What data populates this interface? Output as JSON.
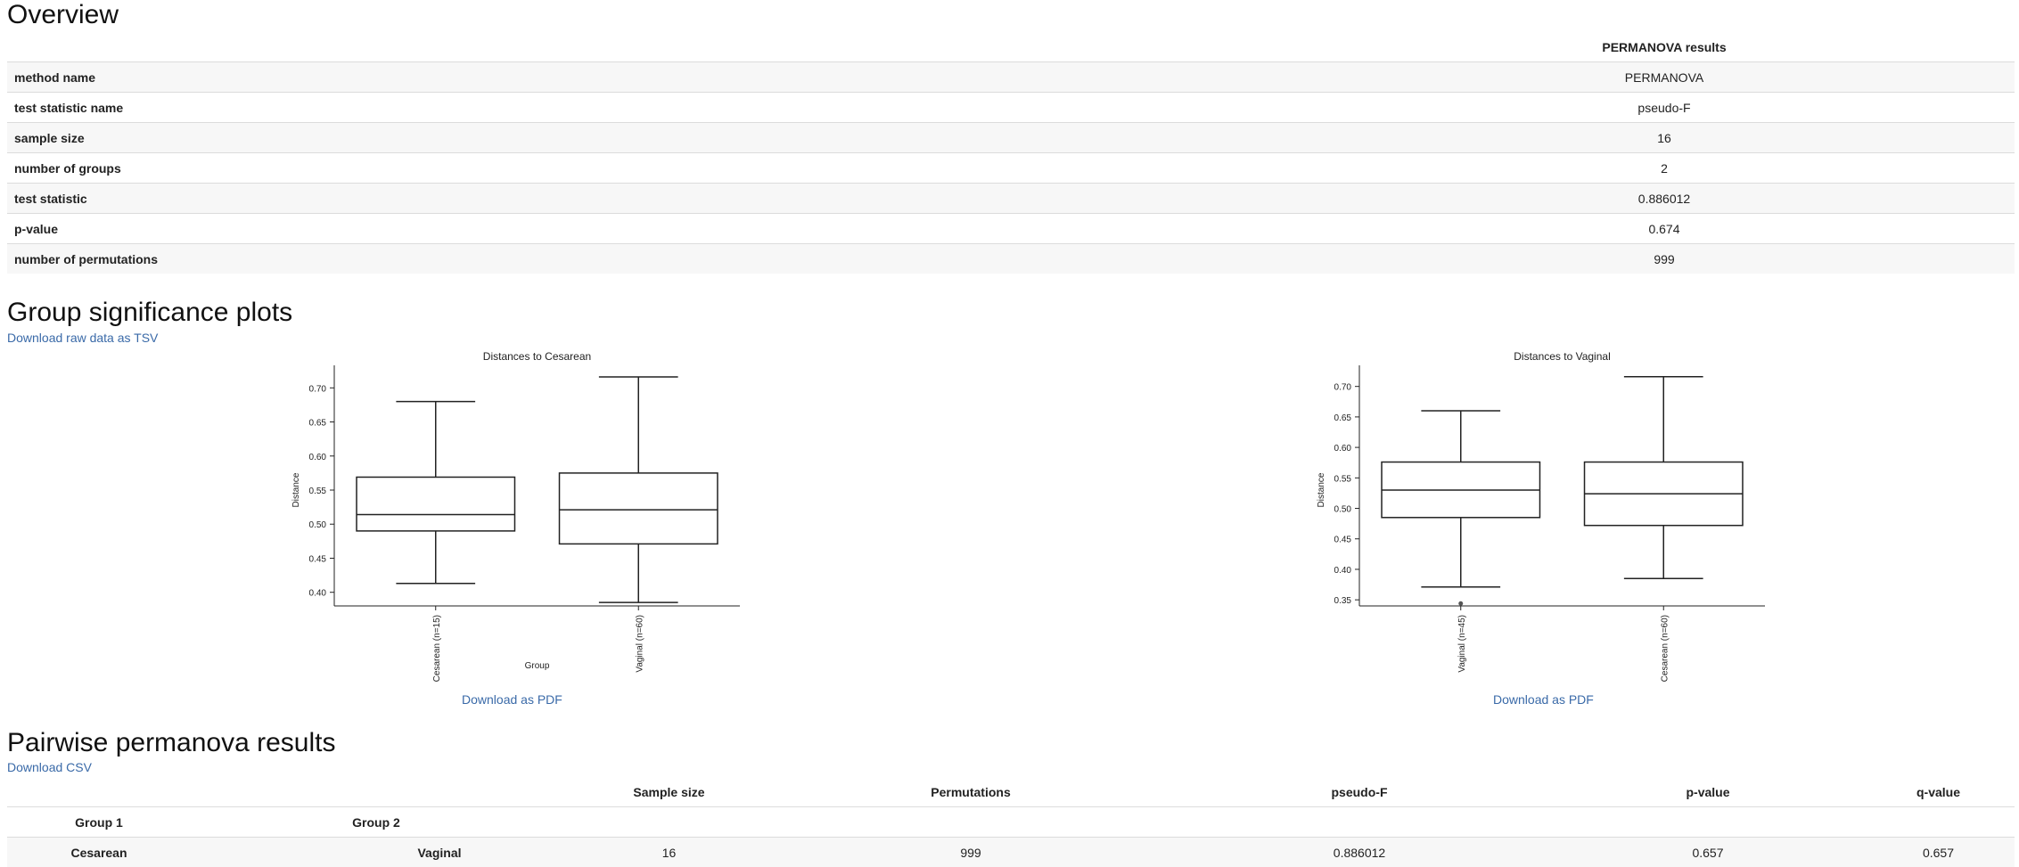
{
  "overview": {
    "title": "Overview",
    "column_header": "PERMANOVA results",
    "rows": [
      {
        "key": "method name",
        "value": "PERMANOVA"
      },
      {
        "key": "test statistic name",
        "value": "pseudo-F"
      },
      {
        "key": "sample size",
        "value": "16"
      },
      {
        "key": "number of groups",
        "value": "2"
      },
      {
        "key": "test statistic",
        "value": "0.886012"
      },
      {
        "key": "p-value",
        "value": "0.674"
      },
      {
        "key": "number of permutations",
        "value": "999"
      }
    ]
  },
  "significance": {
    "title": "Group significance plots",
    "download_tsv": "Download raw data as TSV",
    "download_pdf": "Download as PDF"
  },
  "chart_data": [
    {
      "type": "box",
      "title": "Distances to Cesarean",
      "xlabel": "Group",
      "ylabel": "Distance",
      "ylim": [
        0.38,
        0.72
      ],
      "yticks": [
        "0.40",
        "0.45",
        "0.50",
        "0.55",
        "0.60",
        "0.65",
        "0.70"
      ],
      "categories": [
        "Cesarean (n=15)",
        "Vaginal (n=60)"
      ],
      "boxes": [
        {
          "min": 0.413,
          "q1": 0.49,
          "median": 0.514,
          "q3": 0.569,
          "max": 0.68,
          "outliers": []
        },
        {
          "min": 0.385,
          "q1": 0.471,
          "median": 0.521,
          "q3": 0.575,
          "max": 0.716,
          "outliers": []
        }
      ]
    },
    {
      "type": "box",
      "title": "Distances to Vaginal",
      "xlabel": "",
      "ylabel": "Distance",
      "ylim": [
        0.34,
        0.72
      ],
      "yticks": [
        "0.35",
        "0.40",
        "0.45",
        "0.50",
        "0.55",
        "0.60",
        "0.65",
        "0.70"
      ],
      "categories": [
        "Vaginal (n=45)",
        "Cesarean (n=60)"
      ],
      "boxes": [
        {
          "min": 0.371,
          "q1": 0.485,
          "median": 0.53,
          "q3": 0.576,
          "max": 0.66,
          "outliers": [
            0.344
          ]
        },
        {
          "min": 0.385,
          "q1": 0.472,
          "median": 0.524,
          "q3": 0.576,
          "max": 0.716,
          "outliers": []
        }
      ]
    }
  ],
  "pairwise": {
    "title": "Pairwise permanova results",
    "download_csv": "Download CSV",
    "headers": [
      "Sample size",
      "Permutations",
      "pseudo-F",
      "p-value",
      "q-value"
    ],
    "group1_header": "Group 1",
    "group2_header": "Group 2",
    "rows": [
      {
        "group1": "Cesarean",
        "group2": "Vaginal",
        "sample_size": "16",
        "permutations": "999",
        "pseudo_f": "0.886012",
        "p_value": "0.657",
        "q_value": "0.657"
      }
    ]
  }
}
